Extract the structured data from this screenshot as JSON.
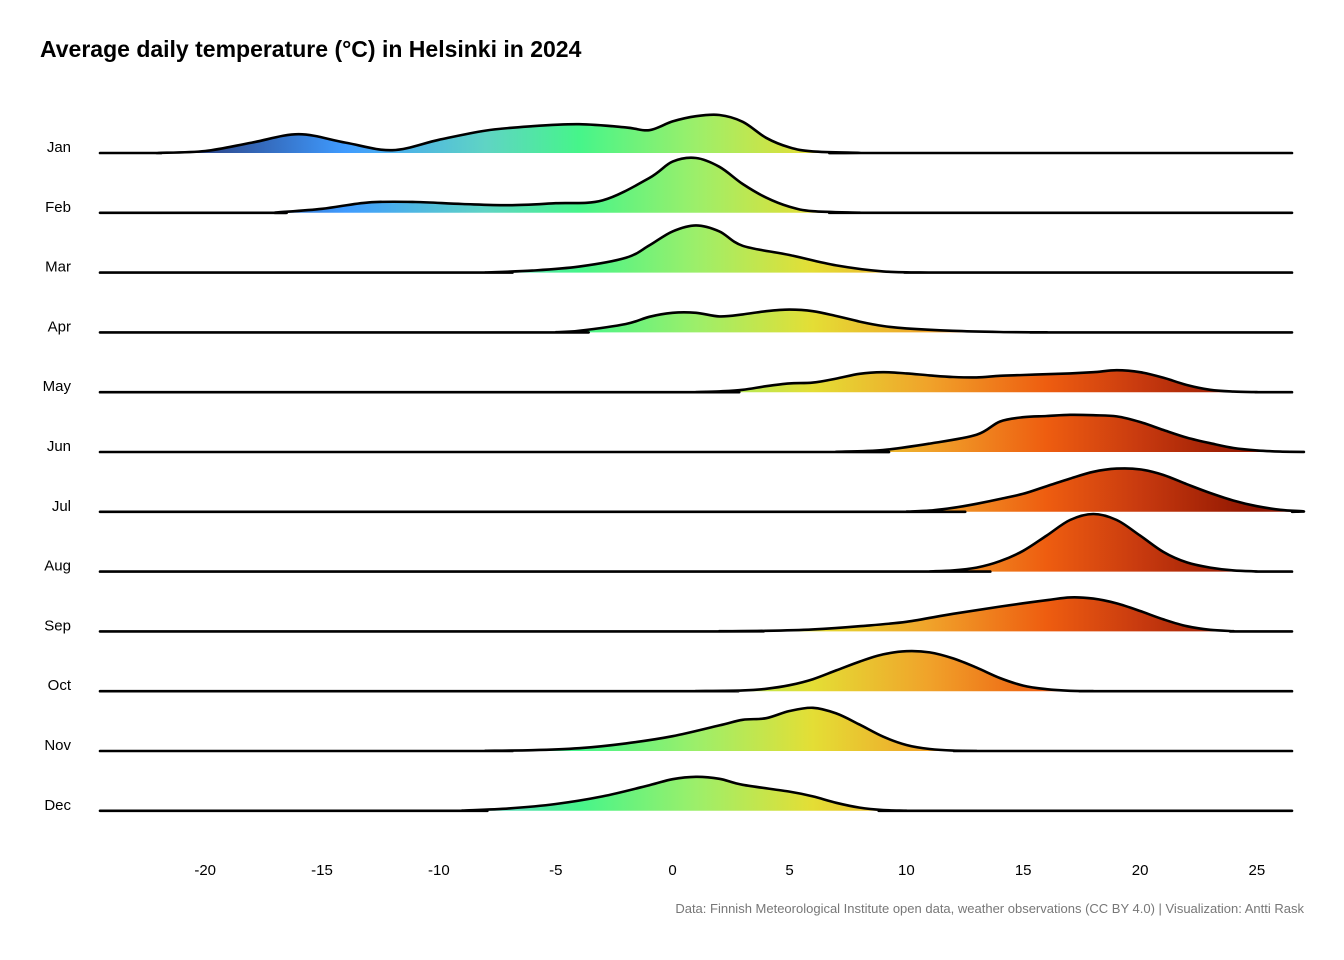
{
  "title": "Average daily temperature (°C) in Helsinki in 2024",
  "caption": "Data: Finnish Meteorological Institute open data, weather observations (CC BY 4.0) | Visualization: Antti Rask",
  "chart_data": {
    "type": "ridgeline",
    "title": "Average daily temperature (°C) in Helsinki in 2024",
    "xlabel": "",
    "ylabel": "",
    "xlim": [
      -24.5,
      26.5
    ],
    "x_ticks": [
      -20,
      -15,
      -10,
      -5,
      0,
      5,
      10,
      15,
      20,
      25
    ],
    "grid": false,
    "legend": "none",
    "fill": "gradient along x (temperature)",
    "color_stops": [
      {
        "t": -21,
        "color": "#2a3a7a"
      },
      {
        "t": -14,
        "color": "#3f9bff"
      },
      {
        "t": -8,
        "color": "#5fd4c4"
      },
      {
        "t": -4,
        "color": "#46f58a"
      },
      {
        "t": 1,
        "color": "#9cef6a"
      },
      {
        "t": 6,
        "color": "#e4de35"
      },
      {
        "t": 11,
        "color": "#f0a22a"
      },
      {
        "t": 16,
        "color": "#ee5d10"
      },
      {
        "t": 20,
        "color": "#c83a0f"
      },
      {
        "t": 25,
        "color": "#8e1500"
      }
    ],
    "series": [
      {
        "name": "Jan",
        "density": [
          [
            -22,
            0.002
          ],
          [
            -20,
            0.05
          ],
          [
            -18,
            0.26
          ],
          [
            -16,
            0.47
          ],
          [
            -14,
            0.26
          ],
          [
            -12,
            0.07
          ],
          [
            -10,
            0.33
          ],
          [
            -8,
            0.56
          ],
          [
            -6,
            0.67
          ],
          [
            -4,
            0.72
          ],
          [
            -2,
            0.64
          ],
          [
            -1,
            0.57
          ],
          [
            0,
            0.79
          ],
          [
            1,
            0.92
          ],
          [
            2,
            0.95
          ],
          [
            3,
            0.78
          ],
          [
            4,
            0.38
          ],
          [
            5,
            0.14
          ],
          [
            6,
            0.04
          ],
          [
            8,
            0.003
          ]
        ]
      },
      {
        "name": "Feb",
        "density": [
          [
            -17,
            0.005
          ],
          [
            -15,
            0.1
          ],
          [
            -13,
            0.26
          ],
          [
            -11,
            0.27
          ],
          [
            -9,
            0.22
          ],
          [
            -7,
            0.19
          ],
          [
            -5,
            0.24
          ],
          [
            -3,
            0.31
          ],
          [
            -1,
            0.87
          ],
          [
            0,
            1.28
          ],
          [
            1,
            1.37
          ],
          [
            2,
            1.15
          ],
          [
            3,
            0.72
          ],
          [
            4,
            0.38
          ],
          [
            5,
            0.15
          ],
          [
            6,
            0.04
          ],
          [
            8,
            0.003
          ]
        ]
      },
      {
        "name": "Mar",
        "density": [
          [
            -8,
            0.005
          ],
          [
            -6,
            0.05
          ],
          [
            -4,
            0.15
          ],
          [
            -2,
            0.37
          ],
          [
            -1,
            0.68
          ],
          [
            0,
            1.03
          ],
          [
            1,
            1.18
          ],
          [
            2,
            1.03
          ],
          [
            3,
            0.67
          ],
          [
            5,
            0.44
          ],
          [
            7,
            0.18
          ],
          [
            9,
            0.03
          ],
          [
            11,
            0.003
          ]
        ]
      },
      {
        "name": "Apr",
        "density": [
          [
            -5,
            0.005
          ],
          [
            -4,
            0.04
          ],
          [
            -2,
            0.21
          ],
          [
            -1,
            0.39
          ],
          [
            0,
            0.49
          ],
          [
            1,
            0.49
          ],
          [
            2,
            0.4
          ],
          [
            3,
            0.45
          ],
          [
            4,
            0.53
          ],
          [
            5,
            0.57
          ],
          [
            6,
            0.53
          ],
          [
            7,
            0.41
          ],
          [
            8,
            0.27
          ],
          [
            9,
            0.16
          ],
          [
            10,
            0.1
          ],
          [
            12,
            0.04
          ],
          [
            14,
            0.01
          ],
          [
            16,
            0.002
          ]
        ]
      },
      {
        "name": "May",
        "density": [
          [
            1,
            0.005
          ],
          [
            2,
            0.02
          ],
          [
            3,
            0.06
          ],
          [
            4,
            0.15
          ],
          [
            5,
            0.22
          ],
          [
            6,
            0.24
          ],
          [
            7,
            0.34
          ],
          [
            8,
            0.46
          ],
          [
            9,
            0.5
          ],
          [
            10,
            0.47
          ],
          [
            11,
            0.42
          ],
          [
            12,
            0.38
          ],
          [
            13,
            0.37
          ],
          [
            14,
            0.41
          ],
          [
            15,
            0.43
          ],
          [
            16,
            0.45
          ],
          [
            17,
            0.47
          ],
          [
            18,
            0.5
          ],
          [
            19,
            0.55
          ],
          [
            20,
            0.5
          ],
          [
            21,
            0.36
          ],
          [
            22,
            0.18
          ],
          [
            23,
            0.06
          ],
          [
            24,
            0.015
          ],
          [
            25,
            0.002
          ]
        ]
      },
      {
        "name": "Jun",
        "density": [
          [
            7,
            0.005
          ],
          [
            9,
            0.05
          ],
          [
            11,
            0.21
          ],
          [
            13,
            0.43
          ],
          [
            14,
            0.76
          ],
          [
            15,
            0.87
          ],
          [
            16,
            0.9
          ],
          [
            17,
            0.93
          ],
          [
            18,
            0.92
          ],
          [
            19,
            0.89
          ],
          [
            20,
            0.75
          ],
          [
            21,
            0.55
          ],
          [
            22,
            0.36
          ],
          [
            23,
            0.22
          ],
          [
            24,
            0.1
          ],
          [
            25,
            0.04
          ],
          [
            26,
            0.01
          ],
          [
            27,
            0.002
          ]
        ]
      },
      {
        "name": "Jul",
        "density": [
          [
            10,
            0.005
          ],
          [
            11,
            0.03
          ],
          [
            12,
            0.1
          ],
          [
            13,
            0.2
          ],
          [
            14,
            0.32
          ],
          [
            15,
            0.45
          ],
          [
            16,
            0.64
          ],
          [
            17,
            0.83
          ],
          [
            18,
            1.0
          ],
          [
            19,
            1.08
          ],
          [
            20,
            1.06
          ],
          [
            21,
            0.92
          ],
          [
            22,
            0.69
          ],
          [
            23,
            0.47
          ],
          [
            24,
            0.28
          ],
          [
            25,
            0.14
          ],
          [
            26,
            0.05
          ],
          [
            27,
            0.01
          ]
        ]
      },
      {
        "name": "Aug",
        "density": [
          [
            11,
            0.005
          ],
          [
            12,
            0.03
          ],
          [
            13,
            0.1
          ],
          [
            14,
            0.26
          ],
          [
            15,
            0.52
          ],
          [
            16,
            0.9
          ],
          [
            17,
            1.29
          ],
          [
            18,
            1.44
          ],
          [
            19,
            1.29
          ],
          [
            20,
            0.9
          ],
          [
            21,
            0.49
          ],
          [
            22,
            0.23
          ],
          [
            23,
            0.1
          ],
          [
            24,
            0.03
          ],
          [
            25,
            0.005
          ]
        ]
      },
      {
        "name": "Sep",
        "density": [
          [
            2,
            0.005
          ],
          [
            4,
            0.015
          ],
          [
            6,
            0.05
          ],
          [
            8,
            0.13
          ],
          [
            10,
            0.24
          ],
          [
            12,
            0.44
          ],
          [
            14,
            0.62
          ],
          [
            16,
            0.78
          ],
          [
            17,
            0.85
          ],
          [
            18,
            0.82
          ],
          [
            19,
            0.7
          ],
          [
            20,
            0.51
          ],
          [
            21,
            0.3
          ],
          [
            22,
            0.13
          ],
          [
            23,
            0.04
          ],
          [
            24,
            0.005
          ]
        ]
      },
      {
        "name": "Oct",
        "density": [
          [
            1,
            0.005
          ],
          [
            3,
            0.02
          ],
          [
            4,
            0.06
          ],
          [
            5,
            0.15
          ],
          [
            6,
            0.3
          ],
          [
            7,
            0.52
          ],
          [
            8,
            0.74
          ],
          [
            9,
            0.92
          ],
          [
            10,
            1.0
          ],
          [
            11,
            0.97
          ],
          [
            12,
            0.82
          ],
          [
            13,
            0.59
          ],
          [
            14,
            0.33
          ],
          [
            15,
            0.14
          ],
          [
            16,
            0.05
          ],
          [
            17,
            0.01
          ],
          [
            18,
            0.002
          ]
        ]
      },
      {
        "name": "Nov",
        "density": [
          [
            -8,
            0.005
          ],
          [
            -6,
            0.02
          ],
          [
            -4,
            0.07
          ],
          [
            -2,
            0.19
          ],
          [
            0,
            0.37
          ],
          [
            2,
            0.64
          ],
          [
            3,
            0.78
          ],
          [
            4,
            0.82
          ],
          [
            5,
            1.0
          ],
          [
            6,
            1.08
          ],
          [
            7,
            0.94
          ],
          [
            8,
            0.66
          ],
          [
            9,
            0.36
          ],
          [
            10,
            0.15
          ],
          [
            11,
            0.05
          ],
          [
            12,
            0.01
          ],
          [
            13,
            0.002
          ]
        ]
      },
      {
        "name": "Dec",
        "density": [
          [
            -9,
            0.005
          ],
          [
            -7,
            0.06
          ],
          [
            -5,
            0.17
          ],
          [
            -3,
            0.36
          ],
          [
            -1,
            0.64
          ],
          [
            0,
            0.79
          ],
          [
            1,
            0.85
          ],
          [
            2,
            0.8
          ],
          [
            3,
            0.65
          ],
          [
            5,
            0.48
          ],
          [
            6,
            0.36
          ],
          [
            7,
            0.2
          ],
          [
            8,
            0.08
          ],
          [
            9,
            0.02
          ],
          [
            10,
            0.003
          ]
        ]
      }
    ]
  }
}
